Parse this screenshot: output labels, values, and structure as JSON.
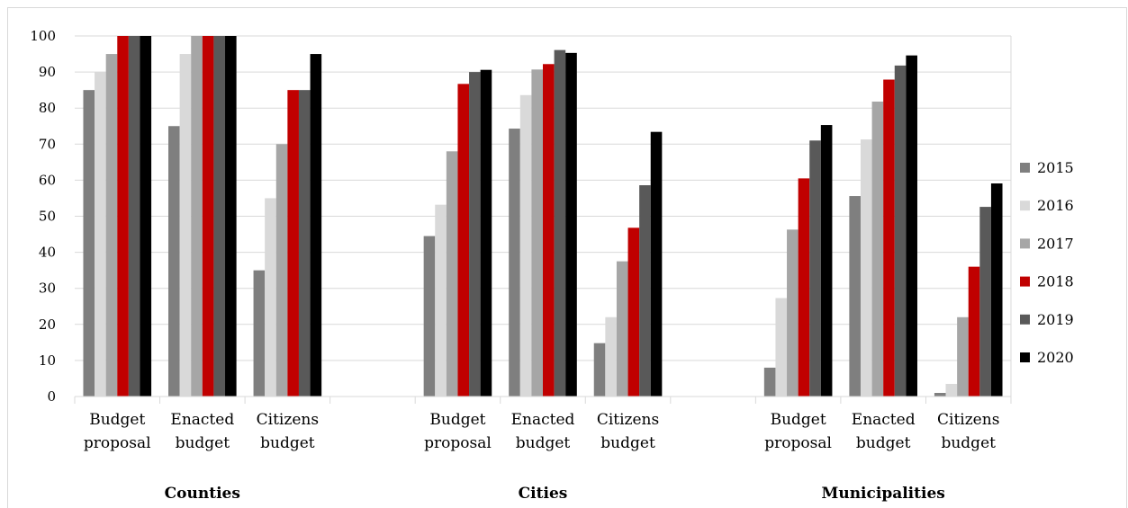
{
  "chart_data": {
    "type": "bar",
    "ylim": [
      0,
      100
    ],
    "yticks": [
      "0",
      "10",
      "20",
      "30",
      "40",
      "50",
      "60",
      "70",
      "80",
      "90",
      "100"
    ],
    "grid": true,
    "legend_position": "right",
    "groups": [
      {
        "name": "Counties",
        "categories": [
          "Budget proposal",
          "Enacted budget",
          "Citizens budget"
        ]
      },
      {
        "name": "Cities",
        "categories": [
          "Budget proposal",
          "Enacted budget",
          "Citizens budget"
        ]
      },
      {
        "name": "Municipalities",
        "categories": [
          "Budget proposal",
          "Enacted budget",
          "Citizens budget"
        ]
      }
    ],
    "series": [
      {
        "name": "2015",
        "color": "#7f7f7f",
        "values": [
          [
            85,
            75,
            35
          ],
          [
            44.5,
            74.3,
            14.8
          ],
          [
            8,
            55.6,
            1
          ]
        ]
      },
      {
        "name": "2016",
        "color": "#d9d9d9",
        "values": [
          [
            90,
            95,
            55
          ],
          [
            53.2,
            83.6,
            22
          ],
          [
            27.3,
            71.3,
            3.5
          ]
        ]
      },
      {
        "name": "2017",
        "color": "#a6a6a6",
        "values": [
          [
            95,
            100,
            70
          ],
          [
            68,
            90.7,
            37.5
          ],
          [
            46.3,
            81.8,
            22
          ]
        ]
      },
      {
        "name": "2018",
        "color": "#c00000",
        "values": [
          [
            100,
            100,
            85
          ],
          [
            86.7,
            92.2,
            46.8
          ],
          [
            60.5,
            87.9,
            36
          ]
        ]
      },
      {
        "name": "2019",
        "color": "#595959",
        "values": [
          [
            100,
            100,
            85
          ],
          [
            90,
            96.1,
            58.6
          ],
          [
            71,
            91.8,
            52.6
          ]
        ]
      },
      {
        "name": "2020",
        "color": "#000000",
        "values": [
          [
            100,
            100,
            95
          ],
          [
            90.6,
            95.3,
            73.4
          ],
          [
            75.3,
            94.6,
            59.1
          ]
        ]
      }
    ]
  }
}
